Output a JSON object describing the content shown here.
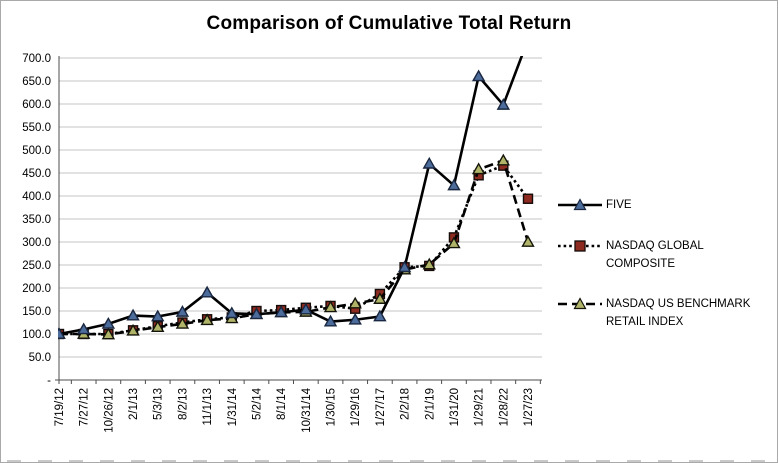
{
  "chart_data": {
    "type": "line",
    "title": "Comparison of Cumulative Total Return",
    "categories": [
      "7/19/12",
      "7/27/12",
      "10/26/12",
      "2/1/13",
      "5/3/13",
      "8/2/13",
      "11/1/13",
      "1/31/14",
      "5/2/14",
      "8/1/14",
      "10/31/14",
      "1/30/15",
      "1/29/16",
      "1/27/17",
      "2/2/18",
      "2/1/19",
      "1/31/20",
      "1/29/21",
      "1/28/22",
      "1/27/23"
    ],
    "series": [
      {
        "name": "FIVE",
        "values": [
          100,
          110,
          122,
          140,
          138,
          148,
          190,
          145,
          143,
          147,
          153,
          127,
          131,
          138,
          245,
          470,
          423,
          660,
          598,
          740
        ],
        "line_style": "solid",
        "line_color": "#000000",
        "marker": "triangle",
        "marker_color": "#4C6C9C",
        "marker_edge": "#1a2740"
      },
      {
        "name": "NASDAQ GLOBAL COMPOSITE",
        "values": [
          100,
          100,
          100,
          108,
          117,
          125,
          132,
          136,
          150,
          152,
          157,
          161,
          155,
          187,
          245,
          248,
          310,
          445,
          466,
          394
        ],
        "line_style": "dotted",
        "line_color": "#000000",
        "marker": "square",
        "marker_color": "#8e2b20",
        "marker_edge": "#140a08"
      },
      {
        "name": "NASDAQ US BENCHMARK RETAIL INDEX",
        "values": [
          100,
          100,
          99,
          107,
          115,
          122,
          130,
          134,
          143,
          147,
          148,
          158,
          166,
          176,
          240,
          251,
          297,
          458,
          477,
          300
        ],
        "line_style": "dashed",
        "line_color": "#000000",
        "marker": "triangle",
        "marker_color": "#b0b469",
        "marker_edge": "#14140a"
      }
    ],
    "ylim": [
      0,
      700
    ],
    "ytick_step": 50,
    "ytick_labels": [
      "-",
      "50.0",
      "100.0",
      "150.0",
      "200.0",
      "250.0",
      "300.0",
      "350.0",
      "400.0",
      "450.0",
      "500.0",
      "550.0",
      "600.0",
      "650.0",
      "700.0"
    ],
    "grid": true,
    "gridline_color": "#c4c4c4",
    "axis_color": "#4d4d4d",
    "legend_position": "right",
    "note_last_five_point_clipped_above_axis_max": true
  }
}
